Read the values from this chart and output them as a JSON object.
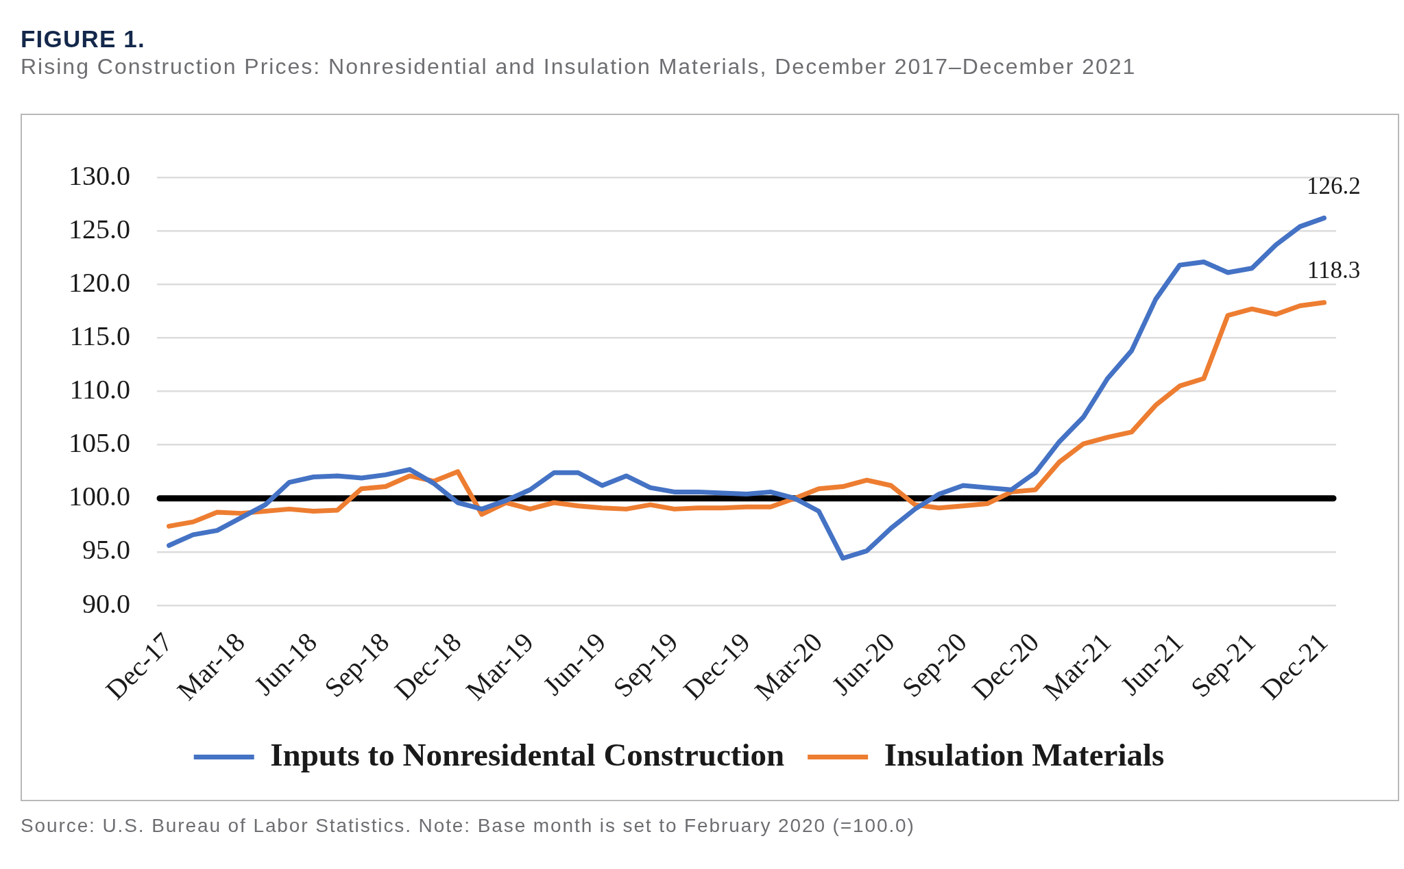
{
  "chart_data": {
    "type": "line",
    "title": "FIGURE 1.",
    "subtitle": "Rising Construction Prices: Nonresidential and Insulation Materials, December 2017–December 2021",
    "categories": [
      "Dec-17",
      null,
      null,
      "Mar-18",
      null,
      null,
      "Jun-18",
      null,
      null,
      "Sep-18",
      null,
      null,
      "Dec-18",
      null,
      null,
      "Mar-19",
      null,
      null,
      "Jun-19",
      null,
      null,
      "Sep-19",
      null,
      null,
      "Dec-19",
      null,
      null,
      "Mar-20",
      null,
      null,
      "Jun-20",
      null,
      null,
      "Sep-20",
      null,
      null,
      "Dec-20",
      null,
      null,
      "Mar-21",
      null,
      null,
      "Jun-21",
      null,
      null,
      "Sep-21",
      null,
      null,
      "Dec-21"
    ],
    "series": [
      {
        "name": "Inputs to Nonresidental Construction",
        "color": "#4472c4",
        "values": [
          95.6,
          96.6,
          97.0,
          98.2,
          99.4,
          101.5,
          102.0,
          102.1,
          101.9,
          102.2,
          102.7,
          101.4,
          99.6,
          99.0,
          99.8,
          100.8,
          102.4,
          102.4,
          101.2,
          102.1,
          101.0,
          100.6,
          100.6,
          100.5,
          100.4,
          100.6,
          100.0,
          98.8,
          94.4,
          95.1,
          97.2,
          99.0,
          100.4,
          101.2,
          101.0,
          100.8,
          102.4,
          105.3,
          107.6,
          111.2,
          113.8,
          118.6,
          121.8,
          122.1,
          121.1,
          121.5,
          123.7,
          125.4,
          126.2
        ],
        "value_labels": [
          null,
          null,
          null,
          null,
          null,
          null,
          null,
          null,
          null,
          null,
          null,
          null,
          null,
          null,
          null,
          null,
          null,
          null,
          null,
          null,
          null,
          null,
          null,
          null,
          null,
          null,
          null,
          null,
          null,
          null,
          null,
          null,
          null,
          null,
          null,
          null,
          null,
          null,
          null,
          null,
          null,
          null,
          null,
          null,
          null,
          null,
          null,
          null,
          "126.2"
        ]
      },
      {
        "name": "Insulation Materials",
        "color": "#ed7d31",
        "values": [
          97.4,
          97.8,
          98.7,
          98.6,
          98.8,
          99.0,
          98.8,
          98.9,
          100.9,
          101.1,
          102.1,
          101.6,
          102.5,
          98.5,
          99.6,
          99.0,
          99.6,
          99.3,
          99.1,
          99.0,
          99.4,
          99.0,
          99.1,
          99.1,
          99.2,
          99.2,
          100.0,
          100.9,
          101.1,
          101.7,
          101.2,
          99.4,
          99.1,
          99.3,
          99.5,
          100.6,
          100.8,
          103.4,
          105.1,
          105.7,
          106.2,
          108.7,
          110.5,
          111.2,
          117.1,
          117.7,
          117.2,
          118.0,
          118.3
        ],
        "value_labels": [
          null,
          null,
          null,
          null,
          null,
          null,
          null,
          null,
          null,
          null,
          null,
          null,
          null,
          null,
          null,
          null,
          null,
          null,
          null,
          null,
          null,
          null,
          null,
          null,
          null,
          null,
          null,
          null,
          null,
          null,
          null,
          null,
          null,
          null,
          null,
          null,
          null,
          null,
          null,
          null,
          null,
          null,
          null,
          null,
          null,
          null,
          null,
          null,
          "118.3"
        ]
      }
    ],
    "ylim": [
      90,
      130
    ],
    "yticks": [
      {
        "value": 90,
        "label": "90.0"
      },
      {
        "value": 95,
        "label": "95.0"
      },
      {
        "value": 100,
        "label": "100.0"
      },
      {
        "value": 105,
        "label": "105.0"
      },
      {
        "value": 110,
        "label": "110.0"
      },
      {
        "value": 115,
        "label": "115.0"
      },
      {
        "value": 120,
        "label": "120.0"
      },
      {
        "value": 125,
        "label": "125.0"
      },
      {
        "value": 130,
        "label": "130.0"
      }
    ],
    "grid": "y",
    "legend": "bottom",
    "marker": "none",
    "ref_lines": [
      {
        "axis": "y",
        "value": 100,
        "color": "#000000"
      }
    ],
    "annotations": [
      "Source: U.S. Bureau of Labor Statistics. Note: Base month is set to February 2020 (=100.0)"
    ]
  }
}
